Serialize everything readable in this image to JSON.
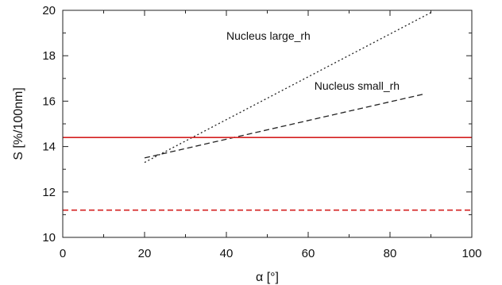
{
  "chart_data": {
    "type": "line",
    "title": "",
    "xlabel": "α [°]",
    "ylabel": "S [%/100nm]",
    "xlim": [
      0,
      100
    ],
    "ylim": [
      10,
      20
    ],
    "x_ticks": [
      0,
      20,
      40,
      60,
      80,
      100
    ],
    "y_ticks": [
      10,
      12,
      14,
      16,
      18,
      20
    ],
    "x_tick_labels": [
      "0",
      "20",
      "40",
      "60",
      "80",
      "100"
    ],
    "y_tick_labels": [
      "10",
      "12",
      "14",
      "16",
      "18",
      "20"
    ],
    "grid": false,
    "series": [
      {
        "x": [
          20,
          90
        ],
        "y": [
          13.3,
          19.9
        ],
        "color": "#222222",
        "dash": "dotted"
      },
      {
        "x": [
          20,
          88
        ],
        "y": [
          13.5,
          16.3
        ],
        "color": "#222222",
        "dash": "dashed"
      },
      {
        "x": [
          0,
          100
        ],
        "y": [
          14.4,
          14.4
        ],
        "color": "#d42020",
        "dash": "solid"
      },
      {
        "x": [
          0,
          100
        ],
        "y": [
          11.2,
          11.2
        ],
        "color": "#d42020",
        "dash": "dashed"
      }
    ],
    "annotations": [
      {
        "text": "Nucleus large_rh",
        "x": 40,
        "y": 18.7
      },
      {
        "text": "Nucleus small_rh",
        "x": 61.5,
        "y": 16.5
      }
    ]
  }
}
